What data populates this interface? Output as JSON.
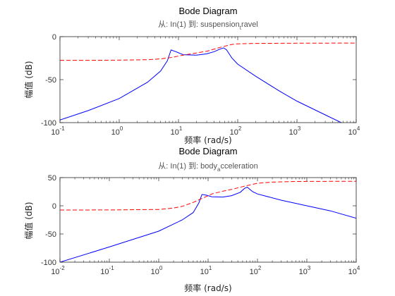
{
  "chart_data": [
    {
      "type": "line",
      "title": "Bode Diagram",
      "subtitle": "从: In(1)  到: suspension_travel",
      "subtitle_parts": {
        "prefix": "从: In(1)  到: suspension",
        "sub": "t",
        "suffix": "ravel"
      },
      "xlabel": "频率  (rad/s)",
      "ylabel": "幅值 (dB)",
      "xscale": "log",
      "xlim": [
        0.1,
        10000
      ],
      "ylim": [
        -100,
        0
      ],
      "xticks": [
        {
          "v": 0.1,
          "m": "10",
          "e": "-1"
        },
        {
          "v": 1,
          "m": "10",
          "e": "0"
        },
        {
          "v": 10,
          "m": "10",
          "e": "1"
        },
        {
          "v": 100,
          "m": "10",
          "e": "2"
        },
        {
          "v": 1000,
          "m": "10",
          "e": "3"
        },
        {
          "v": 10000,
          "m": "10",
          "e": "4"
        }
      ],
      "yticks": [
        {
          "v": 0,
          "t": "0"
        },
        {
          "v": -50,
          "t": "-50"
        },
        {
          "v": -100,
          "t": "-100"
        }
      ],
      "series": [
        {
          "color": "#0000ff",
          "style": "solid",
          "x": [
            0.1,
            0.3,
            1,
            3,
            5,
            6.5,
            7.5,
            9,
            12,
            20,
            30,
            40,
            50,
            58,
            65,
            80,
            100,
            200,
            500,
            1000,
            3000,
            6000
          ],
          "y": [
            -97,
            -86,
            -72,
            -53,
            -40,
            -28,
            -15.5,
            -17.5,
            -21,
            -21.5,
            -20,
            -17.5,
            -14.5,
            -13,
            -15.5,
            -25,
            -32,
            -46,
            -63,
            -75,
            -91,
            -101
          ]
        },
        {
          "color": "#ff0000",
          "style": "dashed",
          "x": [
            0.1,
            0.3,
            1,
            3,
            5,
            8,
            12,
            20,
            30,
            50,
            80,
            100,
            200,
            500,
            1000,
            10000
          ],
          "y": [
            -27.5,
            -27.5,
            -27.3,
            -26.8,
            -25.8,
            -24,
            -21.5,
            -19,
            -17,
            -12.5,
            -9,
            -8.4,
            -7.9,
            -7.7,
            -7.6,
            -7.5
          ]
        }
      ]
    },
    {
      "type": "line",
      "title": "Bode Diagram",
      "subtitle": "从: In(1)  到: body_acceleration",
      "subtitle_parts": {
        "prefix": "从: In(1)  到: body",
        "sub": "a",
        "suffix": "cceleration"
      },
      "xlabel": "频率  (rad/s)",
      "ylabel": "幅值 (dB)",
      "xscale": "log",
      "xlim": [
        0.01,
        10000
      ],
      "ylim": [
        -100,
        50
      ],
      "xticks": [
        {
          "v": 0.01,
          "m": "10",
          "e": "-2"
        },
        {
          "v": 0.1,
          "m": "10",
          "e": "-1"
        },
        {
          "v": 1,
          "m": "10",
          "e": "0"
        },
        {
          "v": 10,
          "m": "10",
          "e": "1"
        },
        {
          "v": 100,
          "m": "10",
          "e": "2"
        },
        {
          "v": 1000,
          "m": "10",
          "e": "3"
        },
        {
          "v": 10000,
          "m": "10",
          "e": "4"
        }
      ],
      "yticks": [
        {
          "v": 50,
          "t": "50"
        },
        {
          "v": 0,
          "t": "0"
        },
        {
          "v": -50,
          "t": "-50"
        },
        {
          "v": -100,
          "t": "-100"
        }
      ],
      "series": [
        {
          "color": "#0000ff",
          "style": "solid",
          "x": [
            0.01,
            0.1,
            1,
            3,
            5,
            6.5,
            7.5,
            9,
            12,
            20,
            30,
            45,
            55,
            62,
            80,
            100,
            300,
            1000,
            3000,
            10000
          ],
          "y": [
            -100,
            -73,
            -45,
            -25,
            -12,
            5,
            20,
            19,
            16,
            15.5,
            18,
            24,
            31,
            33,
            25,
            21,
            10,
            0,
            -9,
            -22
          ]
        },
        {
          "color": "#ff0000",
          "style": "dashed",
          "x": [
            0.01,
            0.1,
            1,
            2,
            3,
            5,
            8,
            12,
            20,
            30,
            50,
            80,
            100,
            200,
            500,
            1000,
            10000
          ],
          "y": [
            -7.5,
            -7.4,
            -6.5,
            -4,
            -1,
            6,
            14,
            21,
            26,
            29,
            34,
            38,
            40,
            42,
            43,
            43.3,
            43.5
          ]
        }
      ]
    }
  ]
}
